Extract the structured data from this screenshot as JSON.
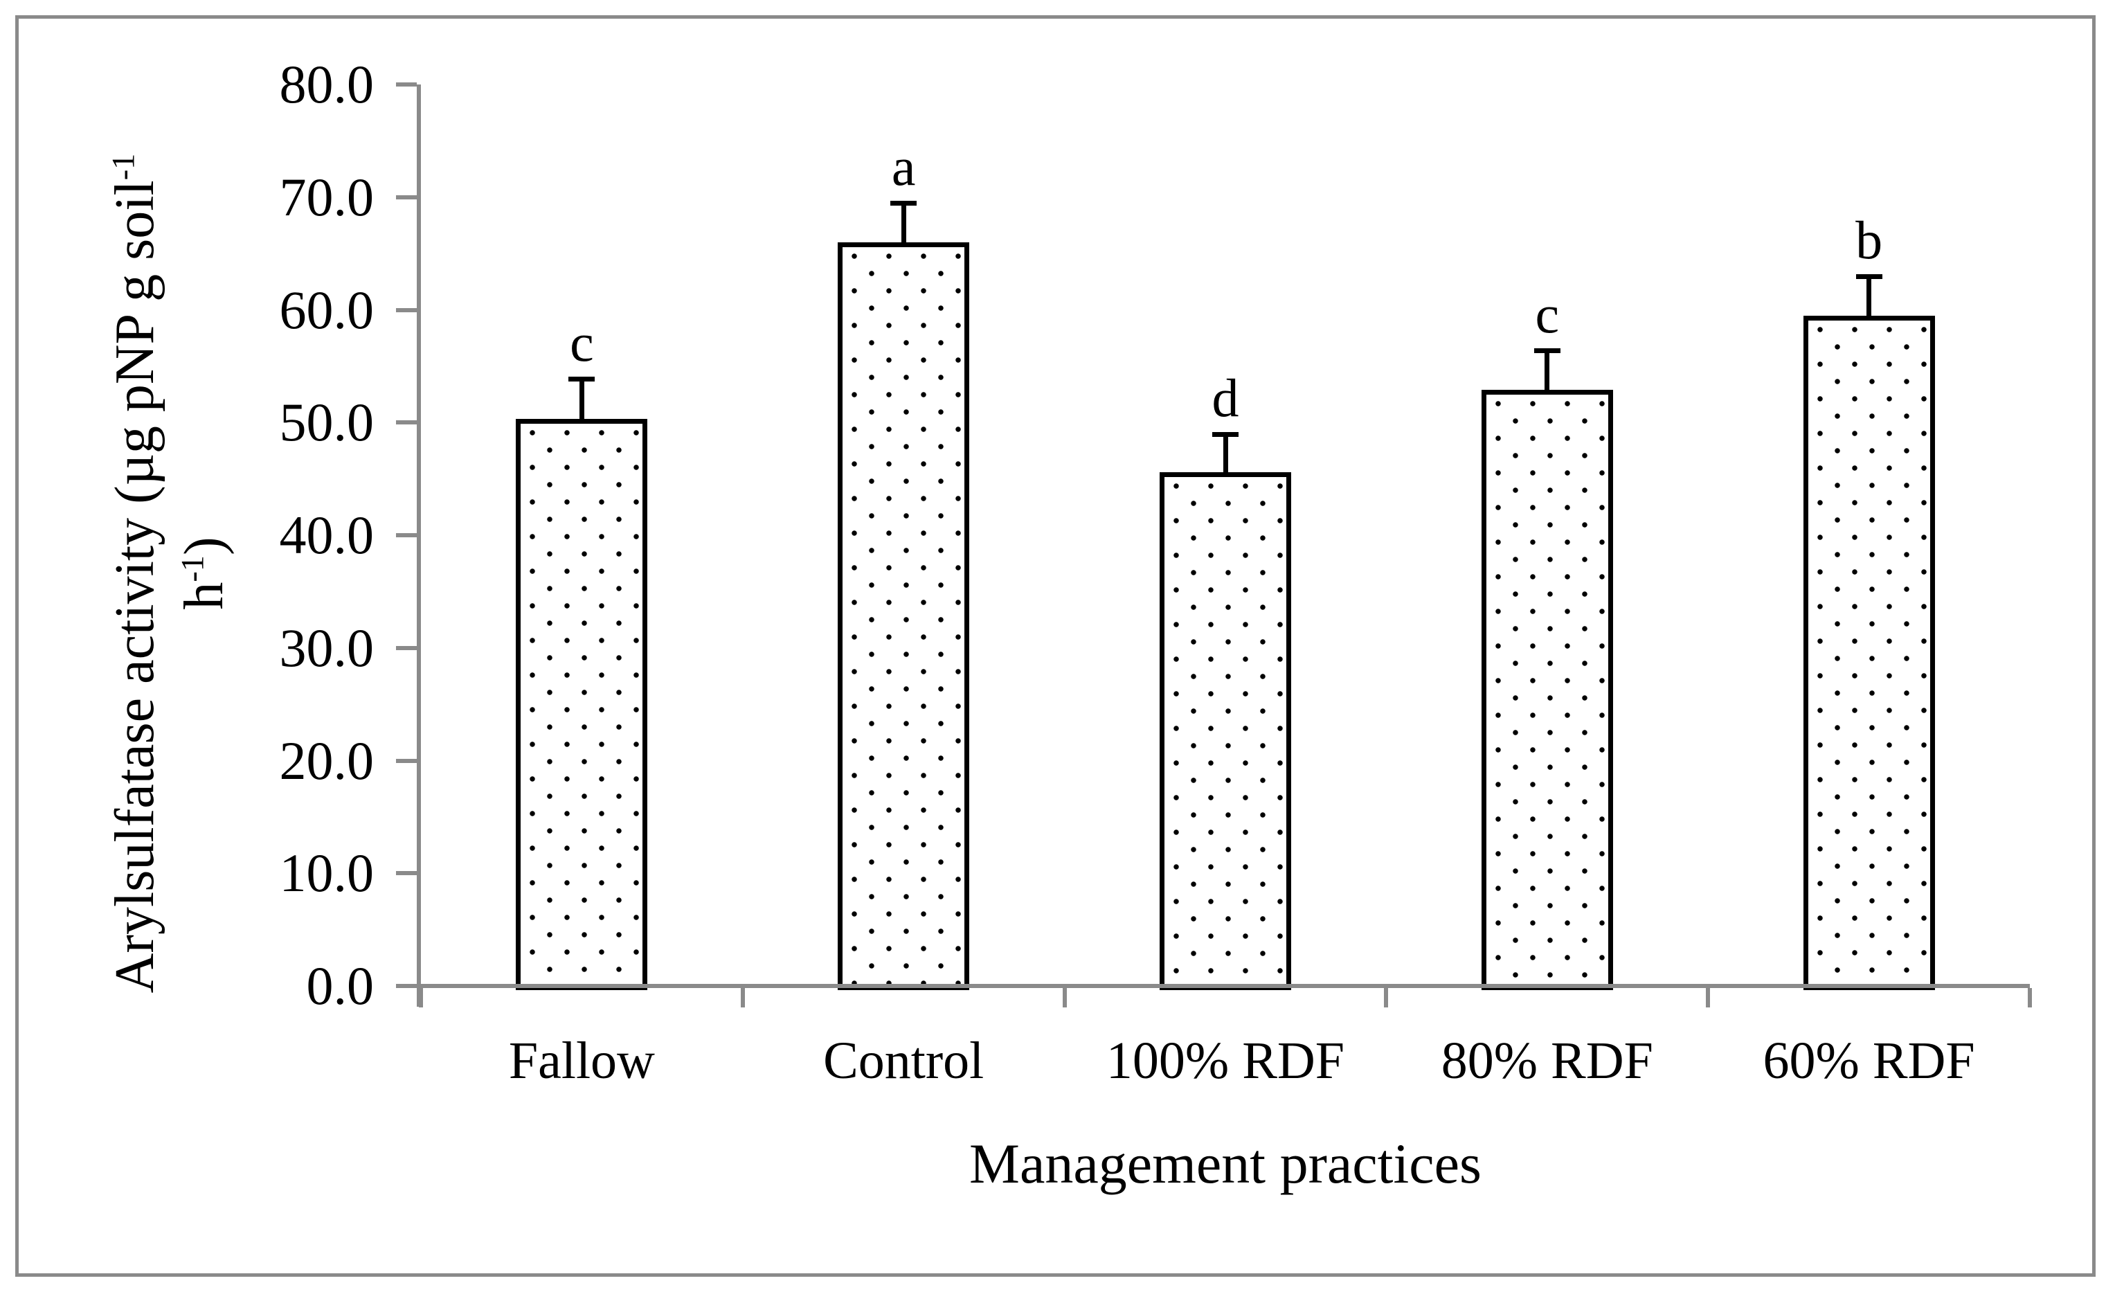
{
  "figure": {
    "background_color": "#ffffff",
    "frame_border_color": "#8a8a8a",
    "axis_color": "#8a8a8a",
    "bar_border_color": "#000000",
    "bar_dot_color": "#000000",
    "text_color": "#000000"
  },
  "labels": {
    "xlabel": "Management practices",
    "ylabel_line1_main": "Arylsulfatase activity (µg pNP g soil",
    "ylabel_line1_sup": "-1",
    "ylabel_line2_main": "h",
    "ylabel_line2_sup": "-1",
    "ylabel_line2_close": ")"
  },
  "chart_data": {
    "type": "bar",
    "title": "",
    "categories": [
      "Fallow",
      "Control",
      "100% RDF",
      "80% RDF",
      "60% RDF"
    ],
    "values": [
      50.3,
      66.0,
      45.6,
      52.9,
      59.5
    ],
    "error_plus": [
      3.6,
      3.5,
      3.4,
      3.5,
      3.5
    ],
    "sig_letters": [
      "c",
      "a",
      "d",
      "c",
      "b"
    ],
    "xlabel": "Management practices",
    "ylabel": "Arylsulfatase activity (µg pNP g soil⁻¹ h⁻¹)",
    "ylim": [
      0,
      80
    ],
    "ytick_step": 10,
    "ytick_labels": [
      "80.0",
      "70.0",
      "60.0",
      "50.0",
      "40.0",
      "30.0",
      "20.0",
      "10.0",
      "0.0"
    ],
    "grid": false,
    "legend": null,
    "bar_fill": "white with black dot pattern",
    "error_bars": "upper only, with cap"
  }
}
